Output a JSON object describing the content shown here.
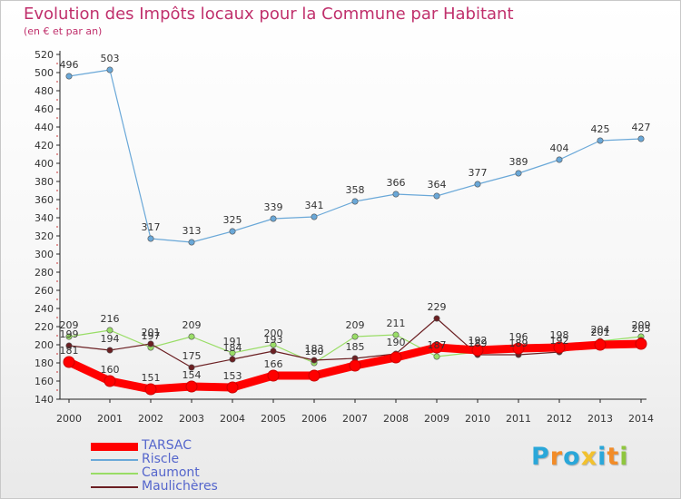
{
  "chart_data": {
    "type": "line",
    "title": "Evolution des Impôts locaux pour la Commune par Habitant",
    "subtitle": "(en € et par an)",
    "xlabel": "",
    "ylabel": "",
    "x": [
      "2000",
      "2001",
      "2002",
      "2003",
      "2004",
      "2005",
      "2006",
      "2007",
      "2008",
      "2009",
      "2010",
      "2011",
      "2012",
      "2013",
      "2014"
    ],
    "ylim": [
      140,
      520
    ],
    "yticks": [
      140,
      160,
      180,
      200,
      220,
      240,
      260,
      280,
      300,
      320,
      340,
      360,
      380,
      400,
      420,
      440,
      460,
      480,
      500,
      520
    ],
    "series": [
      {
        "name": "TARSAC",
        "color": "#ff0000",
        "values": [
          181,
          160,
          151,
          154,
          153,
          166,
          166,
          177,
          186,
          197,
          194,
          196,
          197,
          200,
          201
        ],
        "labels": [
          "181",
          "160",
          "151",
          "154",
          "153",
          "166",
          "",
          "",
          "",
          "",
          "",
          "",
          "",
          "",
          ""
        ]
      },
      {
        "name": "Riscle",
        "color": "#6aa8d8",
        "values": [
          496,
          503,
          317,
          313,
          325,
          339,
          341,
          358,
          366,
          364,
          377,
          389,
          404,
          425,
          427
        ],
        "labels": [
          "496",
          "503",
          "317",
          "313",
          "325",
          "339",
          "341",
          "358",
          "366",
          "364",
          "377",
          "389",
          "404",
          "425",
          "427"
        ]
      },
      {
        "name": "Caumont",
        "color": "#99dd66",
        "values": [
          209,
          216,
          197,
          209,
          191,
          200,
          180,
          209,
          211,
          187,
          192,
          196,
          198,
          204,
          209
        ],
        "labels": [
          "209",
          "216",
          "197",
          "209",
          "191",
          "200",
          "180",
          "209",
          "211",
          "187",
          "192",
          "196",
          "198",
          "204",
          "209"
        ]
      },
      {
        "name": "Maulichères",
        "color": "#6b1f22",
        "values": [
          199,
          194,
          201,
          175,
          184,
          193,
          183,
          185,
          190,
          229,
          189,
          189,
          192,
          201,
          205
        ],
        "labels": [
          "199",
          "194",
          "201",
          "175",
          "184",
          "193",
          "183",
          "185",
          "190",
          "229",
          "189",
          "189",
          "192",
          "201",
          "205"
        ]
      }
    ],
    "legend_position": "bottom-left",
    "grid": false
  },
  "logo": {
    "text": "Proxiti",
    "letters": [
      "P",
      "r",
      "o",
      "x",
      "i",
      "t",
      "i"
    ],
    "colors": [
      "#2aa7d9",
      "#f28c28",
      "#2aa7d9",
      "#f2c12e",
      "#2aa7d9",
      "#f28c28",
      "#8fc63e"
    ]
  }
}
